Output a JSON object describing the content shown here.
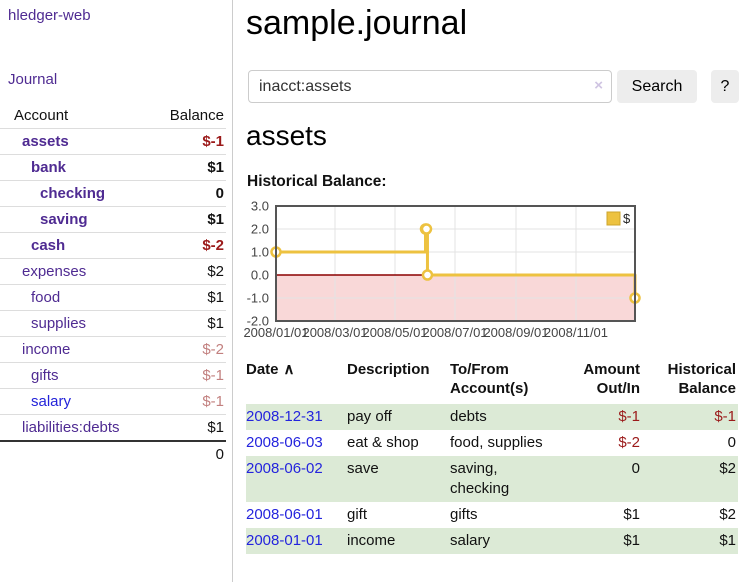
{
  "app": {
    "brand": "hledger-web"
  },
  "sidebar": {
    "journal_link": "Journal",
    "accounts_table": {
      "headers": [
        "Account",
        "Balance"
      ],
      "rows": [
        {
          "name": "assets",
          "level": 1,
          "bold": true,
          "balance": "$-1",
          "balance_style": "neg-strong"
        },
        {
          "name": "bank",
          "level": 2,
          "bold": true,
          "balance": "$1",
          "balance_style": "pos-strong"
        },
        {
          "name": "checking",
          "level": 3,
          "bold": true,
          "balance": "0",
          "balance_style": "pos-strong"
        },
        {
          "name": "saving",
          "level": 3,
          "bold": true,
          "balance": "$1",
          "balance_style": "pos-strong"
        },
        {
          "name": "cash",
          "level": 2,
          "bold": true,
          "balance": "$-2",
          "balance_style": "neg-strong"
        },
        {
          "name": "expenses",
          "level": 1,
          "bold": false,
          "balance": "$2",
          "balance_style": "pos"
        },
        {
          "name": "food",
          "level": 2,
          "bold": false,
          "balance": "$1",
          "balance_style": "pos"
        },
        {
          "name": "supplies",
          "level": 2,
          "bold": false,
          "balance": "$1",
          "balance_style": "pos"
        },
        {
          "name": "income",
          "level": 1,
          "bold": false,
          "balance": "$-2",
          "balance_style": "neg-soft"
        },
        {
          "name": "gifts",
          "level": 2,
          "bold": false,
          "balance": "$-1",
          "balance_style": "neg-soft"
        },
        {
          "name": "salary",
          "level": 2,
          "bold": false,
          "balance": "$-1",
          "balance_style": "neg-soft",
          "link_color": "blue"
        },
        {
          "name": "liabilities:debts",
          "level": 1,
          "bold": false,
          "balance": "$1",
          "balance_style": "pos"
        }
      ],
      "total": "0"
    }
  },
  "header": {
    "title": "sample.journal"
  },
  "search": {
    "value": "inacct:assets",
    "clear_icon": "×",
    "button": "Search",
    "help_button": "?"
  },
  "account_page": {
    "title": "assets",
    "chart_label": "Historical Balance:"
  },
  "chart_data": {
    "type": "line",
    "title": "Historical Balance",
    "step": true,
    "series": [
      {
        "name": "$",
        "color": "#edc240",
        "points": [
          [
            "2008/01/01",
            1
          ],
          [
            "2008/06/01",
            2
          ],
          [
            "2008/06/02",
            2
          ],
          [
            "2008/06/03",
            0
          ],
          [
            "2008/12/31",
            -1
          ]
        ]
      }
    ],
    "x_ticks": [
      "2008/01/01",
      "2008/03/01",
      "2008/05/01",
      "2008/07/01",
      "2008/09/01",
      "2008/11/01"
    ],
    "y_ticks": [
      3.0,
      2.0,
      1.0,
      0.0,
      -1.0,
      -2.0
    ],
    "xlim": [
      "2008/01/01",
      "2008/12/31"
    ],
    "ylim": [
      -2,
      3
    ],
    "grid": true,
    "legend": {
      "label": "$",
      "position": "top-right"
    },
    "negative_region_color": "#f9d8d8",
    "zero_line_color": "#8b0000"
  },
  "register": {
    "headers": {
      "date": "Date",
      "sort_icon": "∧",
      "description": "Description",
      "accounts": "To/From Account(s)",
      "amount": "Amount Out/In",
      "balance": "Historical Balance"
    },
    "rows": [
      {
        "date": "2008-12-31",
        "description": "pay off",
        "accounts": "debts",
        "amount": "$-1",
        "amount_neg": true,
        "balance": "$-1",
        "balance_neg": true
      },
      {
        "date": "2008-06-03",
        "description": "eat & shop",
        "accounts": "food, supplies",
        "amount": "$-2",
        "amount_neg": true,
        "balance": "0",
        "balance_neg": false
      },
      {
        "date": "2008-06-02",
        "description": "save",
        "accounts": "saving,\nchecking",
        "amount": "0",
        "amount_neg": false,
        "balance": "$2",
        "balance_neg": false
      },
      {
        "date": "2008-06-01",
        "description": "gift",
        "accounts": "gifts",
        "amount": "$1",
        "amount_neg": false,
        "balance": "$2",
        "balance_neg": false
      },
      {
        "date": "2008-01-01",
        "description": "income",
        "accounts": "salary",
        "amount": "$1",
        "amount_neg": false,
        "balance": "$1",
        "balance_neg": false
      }
    ]
  }
}
